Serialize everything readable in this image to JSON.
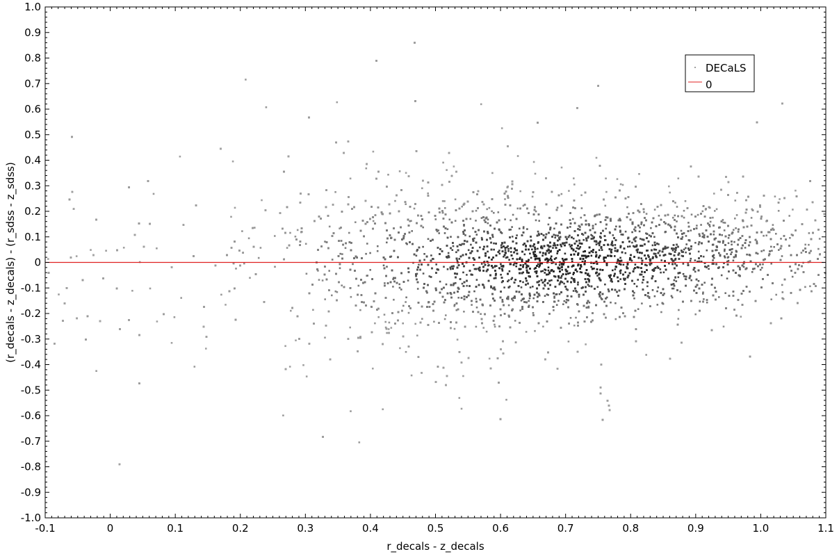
{
  "chart_data": {
    "type": "scatter",
    "title": "",
    "xlabel": "r_decals - z_decals",
    "ylabel": "(r_decals - z_decals) - (r_sdss - z_sdss)",
    "xlim": [
      -0.1,
      1.1
    ],
    "ylim": [
      -1.0,
      1.0
    ],
    "x_ticks": [
      -0.1,
      0,
      0.1,
      0.2,
      0.3,
      0.4,
      0.5,
      0.6,
      0.7,
      0.8,
      0.9,
      1.0,
      1.1
    ],
    "x_tick_labels": [
      "-0.1",
      "0",
      "0.1",
      "0.2",
      "0.3",
      "0.4",
      "0.5",
      "0.6",
      "0.7",
      "0.8",
      "0.9",
      "1.0",
      "1.1"
    ],
    "y_ticks": [
      -1.0,
      -0.9,
      -0.8,
      -0.7,
      -0.6,
      -0.5,
      -0.4,
      -0.3,
      -0.2,
      -0.1,
      0,
      0.1,
      0.2,
      0.3,
      0.4,
      0.5,
      0.6,
      0.7,
      0.8,
      0.9,
      1.0
    ],
    "y_tick_labels": [
      "-1.0",
      "-0.9",
      "-0.8",
      "-0.7",
      "-0.6",
      "-0.5",
      "-0.4",
      "-0.3",
      "-0.2",
      "-0.1",
      "0",
      "0.1",
      "0.2",
      "0.3",
      "0.4",
      "0.5",
      "0.6",
      "0.7",
      "0.8",
      "0.9",
      "1.0"
    ],
    "grid": false,
    "legend": {
      "placement": "top-right",
      "entries": [
        {
          "label": "DECaLS",
          "marker": "point",
          "color": "#9e9e9e"
        },
        {
          "label": "0",
          "marker": "line",
          "color": "#e02020"
        }
      ]
    },
    "series": [
      {
        "name": "DECaLS",
        "kind": "density-scatter",
        "color": "#9e9e9e",
        "core_color": "#1e1e1e",
        "density_peak": {
          "x": 0.7,
          "y": 0.0
        },
        "spread_profile": [
          {
            "x": -0.1,
            "y_center": -0.05,
            "y_sd": 0.2
          },
          {
            "x": 0.1,
            "y_center": -0.05,
            "y_sd": 0.17
          },
          {
            "x": 0.3,
            "y_center": 0.0,
            "y_sd": 0.2
          },
          {
            "x": 0.5,
            "y_center": 0.0,
            "y_sd": 0.15
          },
          {
            "x": 0.7,
            "y_center": 0.0,
            "y_sd": 0.11
          },
          {
            "x": 0.9,
            "y_center": 0.03,
            "y_sd": 0.1
          },
          {
            "x": 1.1,
            "y_center": 0.07,
            "y_sd": 0.1
          }
        ]
      },
      {
        "name": "0",
        "kind": "line",
        "color": "#e02020",
        "x": [
          -0.1,
          1.1
        ],
        "y": [
          0,
          0
        ]
      }
    ]
  }
}
